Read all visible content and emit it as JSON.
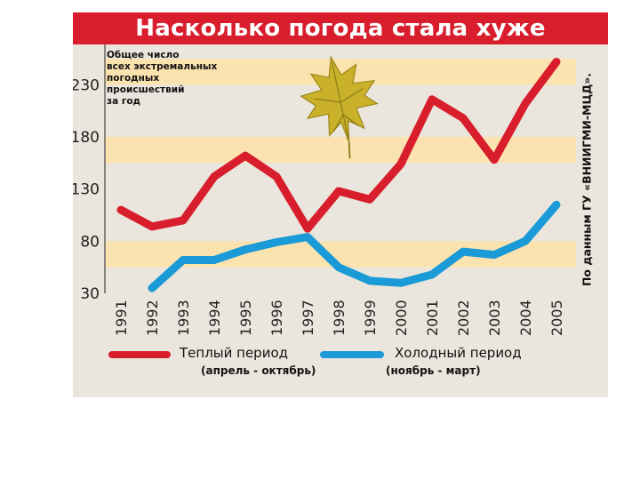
{
  "chart_data": {
    "type": "line",
    "title": "Насколько погода стала хуже",
    "ylabel": "Общее число\nвсех экстремальных\nпогодных\nпроисшествий\nза год",
    "source": "По данным ГУ «ВНИИГМИ-МЦД».",
    "x": [
      "1991",
      "1992",
      "1993",
      "1994",
      "1995",
      "1996",
      "1997",
      "1998",
      "1999",
      "2000",
      "2001",
      "2002",
      "2003",
      "2004",
      "2005"
    ],
    "yticks": [
      30,
      80,
      130,
      180,
      230
    ],
    "ylim": [
      30,
      255
    ],
    "grid": "alternating horizontal bands",
    "legend_position": "bottom",
    "series": [
      {
        "name": "Теплый период",
        "subtitle": "(апрель - октябрь)",
        "color": "#d81e2c",
        "values": [
          110,
          94,
          100,
          142,
          162,
          142,
          92,
          128,
          120,
          154,
          216,
          198,
          158,
          212,
          252
        ]
      },
      {
        "name": "Холодный период",
        "subtitle": "(ноябрь - март)",
        "color": "#1a9ad6",
        "values": [
          null,
          35,
          62,
          62,
          72,
          79,
          84,
          55,
          42,
          40,
          48,
          70,
          67,
          80,
          115
        ]
      }
    ]
  }
}
